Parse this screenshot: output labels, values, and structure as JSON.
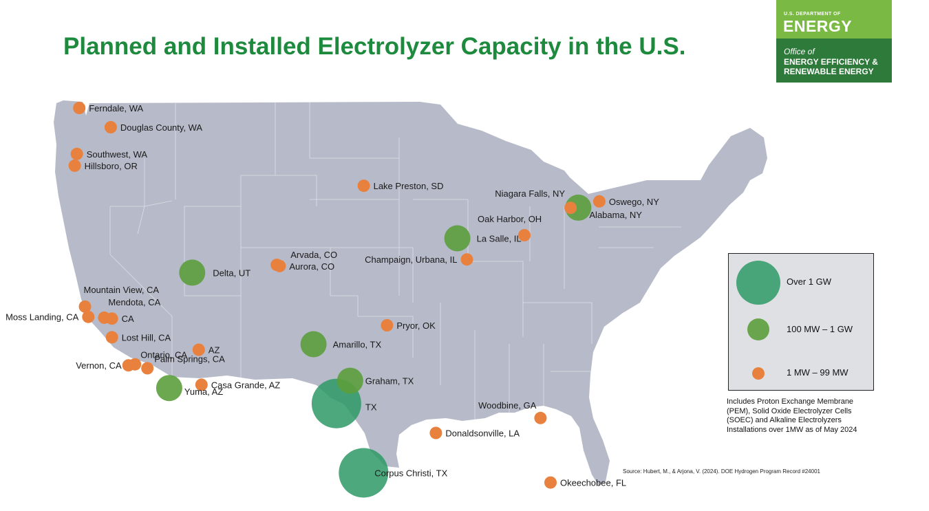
{
  "title": "Planned and Installed Electrolyzer Capacity in the U.S.",
  "logo": {
    "department": "U.S. DEPARTMENT OF",
    "energy": "ENERGY",
    "office": "Office of",
    "eere_line1": "ENERGY EFFICIENCY &",
    "eere_line2": "RENEWABLE ENERGY"
  },
  "colors": {
    "title": "#1e8a3e",
    "map_land": "#b7bac8",
    "over_1gw": "#2e9a66",
    "mw100_1gw": "#5c9e3c",
    "mw1_99": "#e8803e"
  },
  "legend": {
    "items": [
      {
        "label": "Over 1 GW",
        "category": "over_1gw"
      },
      {
        "label": "100 MW – 1 GW",
        "category": "mw100_1gw"
      },
      {
        "label": "1 MW – 99 MW",
        "category": "mw1_99"
      }
    ]
  },
  "note": "Includes Proton Exchange Membrane (PEM), Solid Oxide Electrolyzer Cells (SOEC) and Alkaline Electrolyzers Installations over 1MW as of May 2024",
  "source": "Source: Hubert, M., & Arjona, V. (2024).  DOE Hydrogen Program Record #24001",
  "sites": [
    {
      "label": "Ferndale, WA",
      "category": "mw1_99",
      "lat": 48.85,
      "lon": -122.59
    },
    {
      "label": "Douglas County, WA",
      "category": "mw1_99",
      "lat": 47.74,
      "lon": -119.8
    },
    {
      "label": "Southwest, WA",
      "category": "mw1_99",
      "lat": 46.2,
      "lon": -122.8
    },
    {
      "label": "Hillsboro, OR",
      "category": "mw1_99",
      "lat": 45.52,
      "lon": -122.99
    },
    {
      "label": "Lake Preston, SD",
      "category": "mw1_99",
      "lat": 44.36,
      "lon": -97.38
    },
    {
      "label": "Niagara Falls, NY",
      "category": "mw1_99",
      "lat": 43.09,
      "lon": -79.06
    },
    {
      "label": "Oswego, NY",
      "category": "mw1_99",
      "lat": 43.46,
      "lon": -76.51
    },
    {
      "label": "Alabama, NY",
      "category": "mw100_1gw",
      "lat": 43.1,
      "lon": -78.37
    },
    {
      "label": "Oak Harbor, OH",
      "category": "mw1_99",
      "lat": 41.51,
      "lon": -83.15
    },
    {
      "label": "La Salle, IL",
      "category": "mw100_1gw",
      "lat": 41.33,
      "lon": -89.09
    },
    {
      "label": "Champaign, Urbana, IL",
      "category": "mw1_99",
      "lat": 40.11,
      "lon": -88.24
    },
    {
      "label": "Arvada, CO",
      "category": "mw1_99",
      "lat": 39.8,
      "lon": -105.09
    },
    {
      "label": "Aurora, CO",
      "category": "mw1_99",
      "lat": 39.73,
      "lon": -104.83
    },
    {
      "label": "Delta, UT",
      "category": "mw100_1gw",
      "lat": 39.35,
      "lon": -112.58
    },
    {
      "label": "Mountain View, CA",
      "category": "mw1_99",
      "lat": 37.39,
      "lon": -122.08
    },
    {
      "label": "Mendota, CA",
      "category": "mw1_99",
      "lat": 36.75,
      "lon": -120.38
    },
    {
      "label": "CA",
      "category": "mw1_99",
      "lat": 36.7,
      "lon": -119.7
    },
    {
      "label": "Moss Landing, CA",
      "category": "mw1_99",
      "lat": 36.8,
      "lon": -121.79
    },
    {
      "label": "Lost Hill, CA",
      "category": "mw1_99",
      "lat": 35.62,
      "lon": -119.69
    },
    {
      "label": "AZ",
      "category": "mw1_99",
      "lat": 34.9,
      "lon": -112.0
    },
    {
      "label": "Ontario, CA",
      "category": "mw1_99",
      "lat": 34.06,
      "lon": -117.65
    },
    {
      "label": "Vernon, CA",
      "category": "mw1_99",
      "lat": 34.0,
      "lon": -118.23
    },
    {
      "label": "Palm Springs, CA",
      "category": "mw1_99",
      "lat": 33.83,
      "lon": -116.55
    },
    {
      "label": "Casa Grande, AZ",
      "category": "mw1_99",
      "lat": 32.88,
      "lon": -111.76
    },
    {
      "label": "Yuma, AZ",
      "category": "mw100_1gw",
      "lat": 32.69,
      "lon": -114.62
    },
    {
      "label": "Pryor, OK",
      "category": "mw1_99",
      "lat": 36.31,
      "lon": -95.32
    },
    {
      "label": "Amarillo, TX",
      "category": "mw100_1gw",
      "lat": 35.22,
      "lon": -101.83
    },
    {
      "label": "Graham, TX",
      "category": "mw100_1gw",
      "lat": 33.11,
      "lon": -98.59
    },
    {
      "label": "TX",
      "category": "over_1gw",
      "lat": 31.8,
      "lon": -99.8
    },
    {
      "label": "Corpus Christi, TX",
      "category": "over_1gw",
      "lat": 27.8,
      "lon": -97.4
    },
    {
      "label": "Donaldsonville, LA",
      "category": "mw1_99",
      "lat": 30.1,
      "lon": -90.99
    },
    {
      "label": "Woodbine, GA",
      "category": "mw1_99",
      "lat": 30.96,
      "lon": -81.72
    },
    {
      "label": "Okeechobee, FL",
      "category": "mw1_99",
      "lat": 27.24,
      "lon": -80.83
    }
  ]
}
